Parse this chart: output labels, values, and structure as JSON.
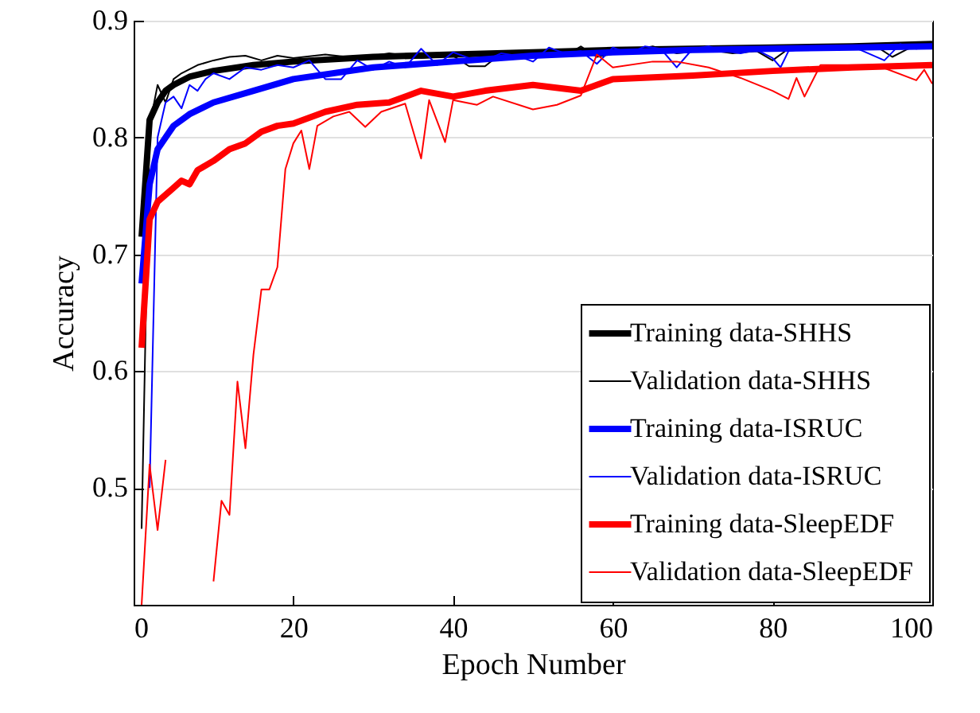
{
  "chart_data": {
    "type": "line",
    "xlabel": "Epoch Number",
    "ylabel": "Accuracy",
    "xlim": [
      0,
      100
    ],
    "xticks": [
      0,
      20,
      40,
      60,
      80,
      100
    ],
    "ylim": [
      0.4,
      0.9
    ],
    "yticks": [
      0.5,
      0.6,
      0.7,
      0.8,
      0.9
    ],
    "grid": "y",
    "legend": "bottom right",
    "marker": "none",
    "line_style": "solid",
    "series": [
      {
        "name": "Training data-SHHS",
        "color": "#000000",
        "x": [
          1,
          2,
          3,
          4,
          5,
          7,
          10,
          15,
          20,
          30,
          40,
          50,
          60,
          70,
          80,
          90,
          100
        ],
        "values": [
          0.715,
          0.815,
          0.83,
          0.84,
          0.845,
          0.852,
          0.857,
          0.862,
          0.865,
          0.869,
          0.871,
          0.873,
          0.875,
          0.876,
          0.877,
          0.878,
          0.88
        ]
      },
      {
        "name": "Validation data-SHHS",
        "color": "#000000",
        "x": [
          1,
          2,
          3,
          4,
          5,
          6,
          8,
          10,
          12,
          14,
          16,
          18,
          20,
          24,
          28,
          32,
          36,
          40,
          42,
          44,
          46,
          50,
          54,
          56,
          58,
          62,
          65,
          68,
          72,
          75,
          78,
          80,
          82,
          86,
          90,
          93,
          95,
          97,
          100
        ],
        "values": [
          0.465,
          0.81,
          0.845,
          0.83,
          0.85,
          0.855,
          0.862,
          0.866,
          0.869,
          0.87,
          0.866,
          0.87,
          0.868,
          0.871,
          0.868,
          0.872,
          0.868,
          0.87,
          0.861,
          0.861,
          0.872,
          0.872,
          0.87,
          0.878,
          0.869,
          0.874,
          0.878,
          0.872,
          0.875,
          0.872,
          0.874,
          0.866,
          0.876,
          0.876,
          0.877,
          0.878,
          0.869,
          0.876,
          0.88
        ]
      },
      {
        "name": "Training data-ISRUC",
        "color": "#0000ff",
        "x": [
          1,
          2,
          3,
          4,
          5,
          7,
          10,
          15,
          20,
          30,
          40,
          50,
          60,
          70,
          80,
          90,
          100
        ],
        "values": [
          0.675,
          0.76,
          0.79,
          0.8,
          0.81,
          0.82,
          0.83,
          0.84,
          0.85,
          0.86,
          0.865,
          0.87,
          0.873,
          0.875,
          0.876,
          0.877,
          0.878
        ]
      },
      {
        "name": "Validation data-ISRUC",
        "color": "#0000ff",
        "x": [
          2,
          3,
          4,
          5,
          6,
          7,
          8,
          9,
          10,
          12,
          14,
          16,
          18,
          20,
          22,
          24,
          26,
          28,
          30,
          32,
          34,
          36,
          38,
          40,
          42,
          44,
          46,
          48,
          50,
          52,
          54,
          56,
          58,
          60,
          62,
          64,
          66,
          68,
          70,
          72,
          74,
          76,
          78,
          80,
          81,
          82,
          86,
          88,
          90,
          92,
          94,
          96,
          98,
          100
        ],
        "values": [
          0.5,
          0.8,
          0.83,
          0.835,
          0.825,
          0.845,
          0.84,
          0.85,
          0.855,
          0.85,
          0.86,
          0.858,
          0.862,
          0.86,
          0.866,
          0.85,
          0.85,
          0.866,
          0.858,
          0.865,
          0.86,
          0.876,
          0.862,
          0.873,
          0.868,
          0.866,
          0.872,
          0.87,
          0.865,
          0.877,
          0.872,
          0.874,
          0.863,
          0.877,
          0.872,
          0.878,
          0.876,
          0.86,
          0.876,
          0.878,
          0.874,
          0.872,
          0.875,
          0.868,
          0.86,
          0.874,
          0.878,
          0.876,
          0.878,
          0.872,
          0.866,
          0.88,
          0.876,
          0.878
        ]
      },
      {
        "name": "Training data-SleepEDF",
        "color": "#ff0000",
        "x": [
          1,
          2,
          3,
          5,
          6,
          7,
          8,
          10,
          12,
          14,
          16,
          18,
          20,
          24,
          28,
          32,
          36,
          40,
          44,
          50,
          56,
          60,
          70,
          80,
          90,
          100
        ],
        "values": [
          0.62,
          0.73,
          0.745,
          0.757,
          0.763,
          0.76,
          0.772,
          0.78,
          0.79,
          0.795,
          0.805,
          0.81,
          0.812,
          0.822,
          0.828,
          0.83,
          0.84,
          0.835,
          0.84,
          0.845,
          0.84,
          0.85,
          0.853,
          0.857,
          0.86,
          0.862
        ]
      },
      {
        "name": "Validation data-SleepEDF",
        "color": "#ff0000",
        "x": [
          1,
          2,
          3,
          4,
          5,
          6,
          7,
          8,
          9,
          10,
          11,
          12,
          13,
          14,
          15,
          16,
          17,
          18,
          19,
          20,
          21,
          22,
          23,
          25,
          27,
          29,
          31,
          34,
          36,
          37,
          39,
          40,
          43,
          45,
          50,
          53,
          56,
          58,
          60,
          65,
          68,
          72,
          76,
          80,
          82,
          83,
          84,
          86,
          93,
          98,
          99,
          100
        ],
        "values": [
          0.4,
          0.52,
          0.464,
          0.524,
          null,
          null,
          null,
          null,
          null,
          0.42,
          0.489,
          0.477,
          0.591,
          0.534,
          0.614,
          0.67,
          0.67,
          0.689,
          0.773,
          0.795,
          0.806,
          0.773,
          0.81,
          0.818,
          0.822,
          0.809,
          0.822,
          0.829,
          0.782,
          0.832,
          0.796,
          0.832,
          0.828,
          0.835,
          0.824,
          0.828,
          0.836,
          0.871,
          0.86,
          0.865,
          0.865,
          0.86,
          0.851,
          0.84,
          0.833,
          0.851,
          0.835,
          0.862,
          0.862,
          0.849,
          0.858,
          0.846
        ]
      }
    ]
  }
}
